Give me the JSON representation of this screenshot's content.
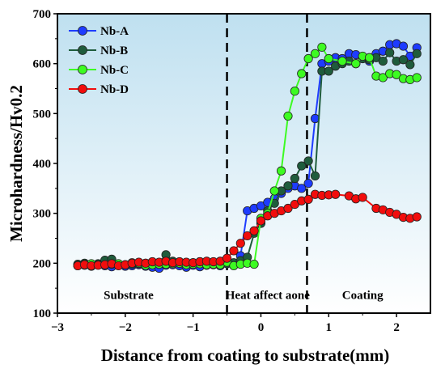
{
  "chart_data": {
    "type": "line",
    "xlabel": "Distance from coating to substrate(mm)",
    "ylabel": "Microhardness/Hv0.2",
    "xlim": [
      -3,
      2.5
    ],
    "ylim": [
      100,
      700
    ],
    "x_ticks": [
      -3,
      -2,
      -1,
      0,
      1,
      2
    ],
    "y_ticks": [
      100,
      200,
      300,
      400,
      500,
      600,
      700
    ],
    "background": {
      "top_color": "#bfe0f0",
      "bottom_color": "#ffffff"
    },
    "legend_position": "top-left",
    "boundaries": [
      -0.5,
      0.68
    ],
    "regions": [
      {
        "label": "Substrate",
        "x": -1.95
      },
      {
        "label": "Heat affect aone",
        "x": 0.1
      },
      {
        "label": "Coating",
        "x": 1.5
      }
    ],
    "series": [
      {
        "name": "Nb-A",
        "color": "#1e3cff",
        "x": [
          -2.7,
          -2.6,
          -2.5,
          -2.4,
          -2.3,
          -2.2,
          -2.1,
          -2.0,
          -1.9,
          -1.8,
          -1.7,
          -1.6,
          -1.5,
          -1.4,
          -1.3,
          -1.2,
          -1.1,
          -1.0,
          -0.9,
          -0.8,
          -0.7,
          -0.6,
          -0.5,
          -0.4,
          -0.3,
          -0.2,
          -0.1,
          0.0,
          0.1,
          0.2,
          0.3,
          0.4,
          0.5,
          0.6,
          0.7,
          0.8,
          0.9,
          1.0,
          1.1,
          1.2,
          1.3,
          1.4,
          1.5,
          1.6,
          1.7,
          1.8,
          1.9,
          2.0,
          2.1,
          2.2,
          2.3
        ],
        "y": [
          195,
          196,
          194,
          198,
          195,
          193,
          196,
          194,
          195,
          197,
          194,
          192,
          190,
          196,
          197,
          195,
          192,
          196,
          193,
          196,
          197,
          195,
          200,
          198,
          215,
          305,
          310,
          315,
          322,
          330,
          340,
          350,
          355,
          350,
          360,
          490,
          600,
          605,
          612,
          610,
          620,
          618,
          612,
          605,
          620,
          625,
          638,
          640,
          635,
          615,
          632
        ]
      },
      {
        "name": "Nb-B",
        "color": "#1f5c3c",
        "x": [
          -2.7,
          -2.6,
          -2.5,
          -2.4,
          -2.3,
          -2.2,
          -2.1,
          -2.0,
          -1.9,
          -1.8,
          -1.7,
          -1.6,
          -1.5,
          -1.4,
          -1.3,
          -1.2,
          -1.1,
          -1.0,
          -0.9,
          -0.8,
          -0.7,
          -0.6,
          -0.5,
          -0.4,
          -0.3,
          -0.2,
          -0.1,
          0.0,
          0.1,
          0.2,
          0.3,
          0.4,
          0.5,
          0.6,
          0.7,
          0.8,
          0.9,
          1.0,
          1.1,
          1.2,
          1.3,
          1.4,
          1.5,
          1.6,
          1.7,
          1.8,
          1.9,
          2.0,
          2.1,
          2.2,
          2.3
        ],
        "y": [
          198,
          200,
          197,
          199,
          206,
          208,
          196,
          197,
          198,
          199,
          200,
          202,
          201,
          217,
          204,
          200,
          199,
          201,
          203,
          202,
          200,
          199,
          199,
          201,
          205,
          212,
          260,
          280,
          305,
          320,
          345,
          355,
          370,
          395,
          405,
          375,
          585,
          585,
          595,
          600,
          605,
          600,
          610,
          608,
          612,
          605,
          622,
          605,
          608,
          598,
          620
        ]
      },
      {
        "name": "Nb-C",
        "color": "#3dfb22",
        "x": [
          -2.7,
          -2.6,
          -2.5,
          -2.4,
          -2.3,
          -2.2,
          -2.1,
          -2.0,
          -1.9,
          -1.8,
          -1.7,
          -1.6,
          -1.5,
          -1.4,
          -1.3,
          -1.2,
          -1.1,
          -1.0,
          -0.9,
          -0.8,
          -0.7,
          -0.6,
          -0.5,
          -0.4,
          -0.3,
          -0.2,
          -0.1,
          0.0,
          0.1,
          0.2,
          0.3,
          0.4,
          0.5,
          0.6,
          0.7,
          0.8,
          0.9,
          1.0,
          1.2,
          1.4,
          1.5,
          1.6,
          1.7,
          1.8,
          1.9,
          2.0,
          2.1,
          2.2,
          2.3
        ],
        "y": [
          196,
          198,
          199,
          197,
          197,
          198,
          199,
          197,
          201,
          200,
          196,
          197,
          198,
          198,
          199,
          200,
          197,
          198,
          199,
          197,
          198,
          197,
          202,
          195,
          198,
          200,
          198,
          290,
          300,
          345,
          385,
          495,
          545,
          580,
          610,
          620,
          633,
          610,
          605,
          600,
          615,
          612,
          575,
          572,
          580,
          578,
          570,
          568,
          572
        ]
      },
      {
        "name": "Nb-D",
        "color": "#f20d0d",
        "x": [
          -2.7,
          -2.6,
          -2.5,
          -2.4,
          -2.3,
          -2.2,
          -2.1,
          -2.0,
          -1.9,
          -1.8,
          -1.7,
          -1.6,
          -1.5,
          -1.4,
          -1.3,
          -1.2,
          -1.1,
          -1.0,
          -0.9,
          -0.8,
          -0.7,
          -0.6,
          -0.5,
          -0.4,
          -0.3,
          -0.2,
          -0.1,
          0.0,
          0.1,
          0.2,
          0.3,
          0.4,
          0.5,
          0.6,
          0.7,
          0.8,
          0.9,
          1.0,
          1.1,
          1.3,
          1.4,
          1.5,
          1.7,
          1.8,
          1.9,
          2.0,
          2.1,
          2.2,
          2.3
        ],
        "y": [
          195,
          197,
          195,
          196,
          197,
          199,
          195,
          197,
          200,
          202,
          200,
          203,
          202,
          204,
          201,
          203,
          202,
          201,
          203,
          204,
          203,
          204,
          210,
          225,
          240,
          255,
          265,
          285,
          295,
          300,
          305,
          310,
          318,
          325,
          328,
          338,
          336,
          337,
          338,
          335,
          329,
          332,
          310,
          307,
          302,
          298,
          292,
          290,
          293
        ]
      }
    ]
  }
}
